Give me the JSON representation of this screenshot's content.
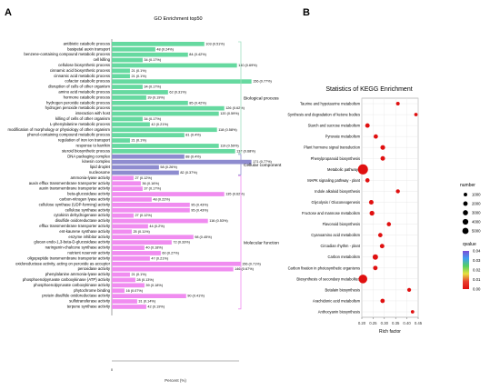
{
  "chart_data": [
    {
      "panel": "A",
      "type": "bar",
      "orientation": "horizontal",
      "title": "GO Enrichment top50",
      "xlabel": "Percent (%)",
      "xtick_labels": [
        "0"
      ],
      "xlim": [
        0,
        0.95
      ],
      "series": [
        {
          "name": "Biological process",
          "color": "#66D9A0"
        },
        {
          "name": "Cellular component",
          "color": "#8E8CCF"
        },
        {
          "name": "Molecular function",
          "color": "#F08CF0"
        }
      ],
      "categories": [
        {
          "term": "antibiotic catabolic process",
          "count": 103,
          "percent": 0.51,
          "label": "103 (0.51%)",
          "group": 0
        },
        {
          "term": "basipetal auxin transport",
          "count": 48,
          "percent": 0.24,
          "label": "48 (0.24%)",
          "group": 0
        },
        {
          "term": "benzene-containing compound metabolic process",
          "count": 84,
          "percent": 0.42,
          "label": "84 (0.42%)",
          "group": 0
        },
        {
          "term": "cell killing",
          "count": 34,
          "percent": 0.17,
          "label": "34 (0.17%)",
          "group": 0
        },
        {
          "term": "cellulose biosynthetic process",
          "count": 140,
          "percent": 0.69,
          "label": "140 (0.69%)",
          "group": 0
        },
        {
          "term": "cinnamic acid biosynthetic process",
          "count": 21,
          "percent": 0.1,
          "label": "21 (0.1%)",
          "group": 0
        },
        {
          "term": "cinnamic acid metabolic process",
          "count": 21,
          "percent": 0.1,
          "label": "21 (0.1%)",
          "group": 0
        },
        {
          "term": "cofactor catabolic process",
          "count": 156,
          "percent": 0.77,
          "label": "156 (0.77%)",
          "group": 0
        },
        {
          "term": "disruption of cells of other organism",
          "count": 34,
          "percent": 0.17,
          "label": "34 (0.17%)",
          "group": 0
        },
        {
          "term": "amino acid metabolic process",
          "count": 62,
          "percent": 0.31,
          "label": "62 (0.31%)",
          "group": 0
        },
        {
          "term": "hormone catabolic process",
          "count": 39,
          "percent": 0.19,
          "label": "39 (0.19%)",
          "group": 0
        },
        {
          "term": "hydrogen peroxide catabolic process",
          "count": 85,
          "percent": 0.42,
          "label": "85 (0.42%)",
          "group": 0
        },
        {
          "term": "hydrogen peroxide metabolic process",
          "count": 126,
          "percent": 0.62,
          "label": "126 (0.62%)",
          "group": 0
        },
        {
          "term": "interaction with host",
          "count": 120,
          "percent": 0.59,
          "label": "120 (0.59%)",
          "group": 0
        },
        {
          "term": "killing of cells of other organism",
          "count": 34,
          "percent": 0.17,
          "label": "34 (0.17%)",
          "group": 0
        },
        {
          "term": "L-phenylalanine metabolic process",
          "count": 42,
          "percent": 0.21,
          "label": "42 (0.21%)",
          "group": 0
        },
        {
          "term": "modification of morphology or physiology of other organism",
          "count": 118,
          "percent": 0.58,
          "label": "118 (0.58%)",
          "group": 0
        },
        {
          "term": "phenol-containing compound metabolic process",
          "count": 81,
          "percent": 0.4,
          "label": "81 (0.4%)",
          "group": 0
        },
        {
          "term": "regulation of iron ion transport",
          "count": 21,
          "percent": 0.1,
          "label": "21 (0.1%)",
          "group": 0
        },
        {
          "term": "response to karrikin",
          "count": 119,
          "percent": 0.59,
          "label": "119 (0.59%)",
          "group": 0
        },
        {
          "term": "steroid biosynthetic process",
          "count": 137,
          "percent": 0.68,
          "label": "137 (0.68%)",
          "group": 0
        },
        {
          "term": "DNA packaging complex",
          "count": 88,
          "percent": 0.4,
          "label": "88 (0.4%)",
          "group": 1
        },
        {
          "term": "kinesin complex",
          "count": 171,
          "percent": 0.77,
          "label": "171 (0.77%)",
          "group": 1
        },
        {
          "term": "lipid droplet",
          "count": 58,
          "percent": 0.26,
          "label": "58 (0.26%)",
          "group": 1
        },
        {
          "term": "nucleosome",
          "count": 82,
          "percent": 0.37,
          "label": "82 (0.37%)",
          "group": 1
        },
        {
          "term": "ammonia-lyase activity",
          "count": 27,
          "percent": 0.12,
          "label": "27 (0.12%)",
          "group": 2
        },
        {
          "term": "auxin efflux transmembrane transporter activity",
          "count": 36,
          "percent": 0.16,
          "label": "36 (0.16%)",
          "group": 2
        },
        {
          "term": "auxin transmembrane transporter activity",
          "count": 37,
          "percent": 0.17,
          "label": "37 (0.17%)",
          "group": 2
        },
        {
          "term": "beta-glucosidase activity",
          "count": 135,
          "percent": 0.62,
          "label": "135 (0.62%)",
          "group": 2
        },
        {
          "term": "carbon-nitrogen lyase activity",
          "count": 48,
          "percent": 0.22,
          "label": "48 (0.22%)",
          "group": 2
        },
        {
          "term": "cellulose synthase (UDP-forming) activity",
          "count": 95,
          "percent": 0.43,
          "label": "95 (0.43%)",
          "group": 2
        },
        {
          "term": "cellulose synthase activity",
          "count": 95,
          "percent": 0.43,
          "label": "95 (0.43%)",
          "group": 2
        },
        {
          "term": "cytokinin dehydrogenase activity",
          "count": 27,
          "percent": 0.12,
          "label": "27 (0.12%)",
          "group": 2
        },
        {
          "term": "disulfide oxidoreductase activity",
          "count": 116,
          "percent": 0.53,
          "label": "116 (0.53%)",
          "group": 2
        },
        {
          "term": "efflux transmembrane transporter activity",
          "count": 44,
          "percent": 0.2,
          "label": "44 (0.2%)",
          "group": 2
        },
        {
          "term": "ent-kaurene synthase activity",
          "count": 25,
          "percent": 0.11,
          "label": "25 (0.11%)",
          "group": 2
        },
        {
          "term": "enzyme inhibitor activity",
          "count": 98,
          "percent": 0.45,
          "label": "98 (0.45%)",
          "group": 2
        },
        {
          "term": "glucan endo-1,3-beta-D-glucosidase activity",
          "count": 72,
          "percent": 0.33,
          "label": "72 (0.33%)",
          "group": 2
        },
        {
          "term": "naringenin-chalcone synthase activity",
          "count": 40,
          "percent": 0.18,
          "label": "40 (0.18%)",
          "group": 2
        },
        {
          "term": "nutrient reservoir activity",
          "count": 60,
          "percent": 0.27,
          "label": "60 (0.27%)",
          "group": 2
        },
        {
          "term": "oligopeptide transmembrane transporter activity",
          "count": 47,
          "percent": 0.21,
          "label": "47 (0.21%)",
          "group": 2
        },
        {
          "term": "oxidoreductase activity, acting on peroxide as acceptor",
          "count": 156,
          "percent": 0.71,
          "label": "156 (0.71%)",
          "group": 2
        },
        {
          "term": "peroxidase activity",
          "count": 146,
          "percent": 0.67,
          "label": "146 (0.67%)",
          "group": 2
        },
        {
          "term": "phenylalanine ammonia-lyase activity",
          "count": 21,
          "percent": 0.1,
          "label": "21 (0.1%)",
          "group": 2
        },
        {
          "term": "phosphoenolpyruvate carboxykinase (ATP) activity",
          "count": 28,
          "percent": 0.13,
          "label": "28 (0.13%)",
          "group": 2
        },
        {
          "term": "phosphoenolpyruvate carboxykinase activity",
          "count": 39,
          "percent": 0.18,
          "label": "39 (0.18%)",
          "group": 2
        },
        {
          "term": "phytochrome binding",
          "count": 16,
          "percent": 0.07,
          "label": "16 (0.07%)",
          "group": 2
        },
        {
          "term": "protein disulfide oxidoreductase activity",
          "count": 90,
          "percent": 0.41,
          "label": "90 (0.41%)",
          "group": 2
        },
        {
          "term": "sulfotransferase activity",
          "count": 31,
          "percent": 0.14,
          "label": "31 (0.14%)",
          "group": 2
        },
        {
          "term": "terpene synthase activity",
          "count": 42,
          "percent": 0.19,
          "label": "42 (0.19%)",
          "group": 2
        }
      ]
    },
    {
      "panel": "B",
      "type": "scatter",
      "title": "Statistics of KEGG Enrichment",
      "xlabel": "Rich factor",
      "xlim": [
        0.2,
        0.45
      ],
      "xticks": [
        0.2,
        0.25,
        0.3,
        0.35,
        0.4,
        0.45
      ],
      "xtick_labels": [
        "0.20",
        "0.25",
        "0.30",
        "0.35",
        "0.40",
        "0.45"
      ],
      "grid": true,
      "categories": [
        "Taurine and hypotaurine metabolism",
        "Synthesis and degradation of ketone bodies",
        "Starch and sucrose metabolism",
        "Pyruvate metabolism",
        "Plant hormone signal transduction",
        "Phenylpropanoid biosynthesis",
        "Metabolic pathways",
        "MAPK signaling pathway - plant",
        "Indole alkaloid biosynthesis",
        "Glycolysis / Gluconeogenesis",
        "Fructose and mannose metabolism",
        "Flavonoid biosynthesis",
        "Cyanoamino acid metabolism",
        "Circadian rhythm - plant",
        "Carbon metabolism",
        "Carbon fixation in photosynthetic organisms",
        "Biosynthesis of secondary metabolites",
        "Betalain biosynthesis",
        "Arachidonic acid metabolism",
        "Anthocyanin biosynthesis"
      ],
      "x": [
        0.36,
        0.44,
        0.225,
        0.262,
        0.293,
        0.293,
        0.205,
        0.225,
        0.36,
        0.242,
        0.245,
        0.32,
        0.282,
        0.29,
        0.26,
        0.26,
        0.205,
        0.41,
        0.292,
        0.425
      ],
      "number": [
        200,
        150,
        450,
        400,
        550,
        500,
        4800,
        380,
        300,
        500,
        600,
        350,
        400,
        450,
        850,
        450,
        3300,
        250,
        400,
        150
      ],
      "qvalue": [
        0.001,
        0.003,
        0.001,
        0.001,
        0.0005,
        0.0005,
        0.0001,
        0.001,
        0.002,
        0.001,
        0.001,
        0.001,
        0.001,
        0.001,
        0.0005,
        0.001,
        0.0001,
        0.003,
        0.001,
        0.003
      ],
      "size_legend": {
        "title": "number",
        "values": [
          1000,
          2000,
          3000,
          4000,
          5000
        ],
        "labels": [
          "1000",
          "2000",
          "3000",
          "4000",
          "5000"
        ]
      },
      "color_legend": {
        "title": "qvalue",
        "ticks": [
          0.04,
          0.03,
          0.02,
          0.01,
          0.0
        ],
        "tick_labels": [
          "0.04",
          "0.03",
          "0.02",
          "0.01",
          "0.00"
        ],
        "colors": [
          "#7B4FD6",
          "#3FA0F0",
          "#55D060",
          "#E8E040",
          "#E84030",
          "#E01010"
        ]
      }
    }
  ],
  "panel_labels": [
    "A",
    "B"
  ],
  "colors": {
    "bp": "#66D9A0",
    "cc": "#8E8CCF",
    "mf": "#F08CF0",
    "dot": "#E01010",
    "grid": "#E6E6E6",
    "bracket": "#A0E0C0"
  }
}
